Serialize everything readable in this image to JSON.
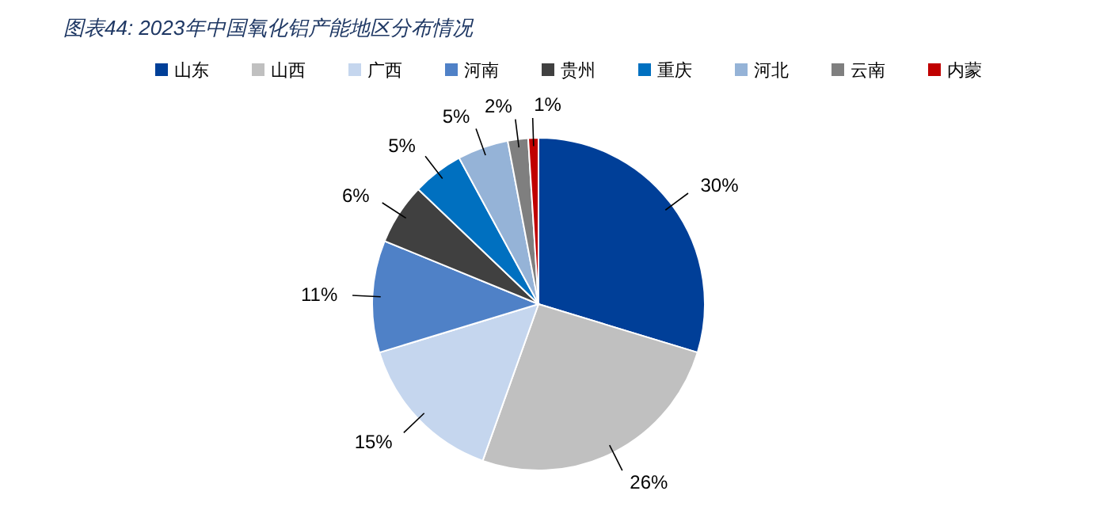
{
  "chart_data": {
    "type": "pie",
    "title": "图表44: 2023年中国氧化铝产能地区分布情况",
    "categories": [
      "山东",
      "山西",
      "广西",
      "河南",
      "贵州",
      "重庆",
      "河北",
      "云南",
      "内蒙"
    ],
    "values": [
      30,
      26,
      15,
      11,
      6,
      5,
      5,
      2,
      1
    ],
    "colors": [
      "#003f98",
      "#c0c0c0",
      "#c5d6ee",
      "#4f81c7",
      "#404040",
      "#0070c0",
      "#95b3d7",
      "#7f7f7f",
      "#c00000"
    ],
    "value_labels": [
      "30%",
      "26%",
      "15%",
      "11%",
      "6%",
      "5%",
      "5%",
      "2%",
      "1%"
    ],
    "legend": "top"
  }
}
